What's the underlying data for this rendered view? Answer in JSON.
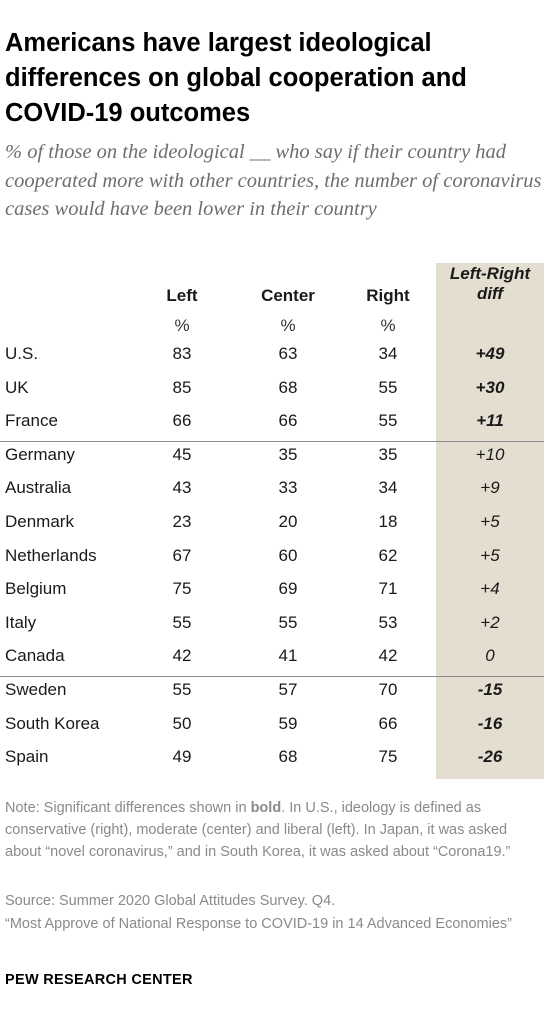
{
  "title": "Americans have largest ideological differences on global cooperation and COVID-19 outcomes",
  "subtitle": "% of those on the ideological __ who say if their country had cooperated more with other countries, the number of coronavirus cases would have been lower in their country",
  "chart_data": {
    "type": "table",
    "columns": [
      "Left",
      "Center",
      "Right"
    ],
    "units": [
      "%",
      "%",
      "%"
    ],
    "diff_header_line1": "Left-Right",
    "diff_header_line2": "diff",
    "groups": [
      [
        {
          "country": "U.S.",
          "left": 83,
          "center": 63,
          "right": 34,
          "diff": "+49",
          "significant": true
        },
        {
          "country": "UK",
          "left": 85,
          "center": 68,
          "right": 55,
          "diff": "+30",
          "significant": true
        },
        {
          "country": "France",
          "left": 66,
          "center": 66,
          "right": 55,
          "diff": "+11",
          "significant": true
        }
      ],
      [
        {
          "country": "Germany",
          "left": 45,
          "center": 35,
          "right": 35,
          "diff": "+10",
          "significant": false
        },
        {
          "country": "Australia",
          "left": 43,
          "center": 33,
          "right": 34,
          "diff": "+9",
          "significant": false
        },
        {
          "country": "Denmark",
          "left": 23,
          "center": 20,
          "right": 18,
          "diff": "+5",
          "significant": false
        },
        {
          "country": "Netherlands",
          "left": 67,
          "center": 60,
          "right": 62,
          "diff": "+5",
          "significant": false
        },
        {
          "country": "Belgium",
          "left": 75,
          "center": 69,
          "right": 71,
          "diff": "+4",
          "significant": false
        },
        {
          "country": "Italy",
          "left": 55,
          "center": 55,
          "right": 53,
          "diff": "+2",
          "significant": false
        },
        {
          "country": "Canada",
          "left": 42,
          "center": 41,
          "right": 42,
          "diff": "0",
          "significant": false
        }
      ],
      [
        {
          "country": "Sweden",
          "left": 55,
          "center": 57,
          "right": 70,
          "diff": "-15",
          "significant": true
        },
        {
          "country": "South Korea",
          "left": 50,
          "center": 59,
          "right": 66,
          "diff": "-16",
          "significant": true
        },
        {
          "country": "Spain",
          "left": 49,
          "center": 68,
          "right": 75,
          "diff": "-26",
          "significant": true
        }
      ]
    ],
    "colors": {
      "diff_column_bg": "#e4ded0",
      "divider": "#8c8c8c"
    }
  },
  "note": {
    "prefix": "Note: Significant differences shown in ",
    "bold_word": "bold",
    "suffix": ". In U.S., ideology is defined as conservative (right), moderate (center) and liberal (left). In Japan, it was asked about “novel coronavirus,” and in South Korea, it was asked about “Corona19.”"
  },
  "source": "Source: Summer 2020 Global Attitudes Survey. Q4.",
  "report": "“Most Approve of National Response to COVID-19 in 14 Advanced Economies”",
  "brand": "PEW RESEARCH CENTER"
}
